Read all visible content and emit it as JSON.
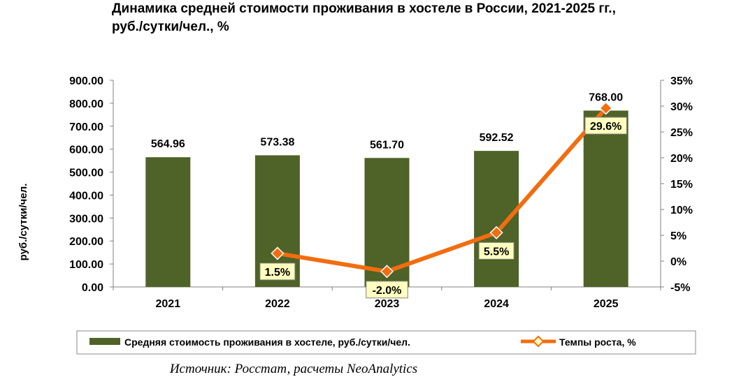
{
  "chart_data": {
    "type": "bar",
    "title": "Динамика средней стоимости проживания в хостеле в России, 2021-2025 гг.,\nруб./сутки/чел., %",
    "categories": [
      "2021",
      "2022",
      "2023",
      "2024",
      "2025"
    ],
    "ylabel": "руб./сутки/чел.",
    "ylim": [
      0,
      900
    ],
    "y_ticks": [
      "0.00",
      "100.00",
      "200.00",
      "300.00",
      "400.00",
      "500.00",
      "600.00",
      "700.00",
      "800.00",
      "900.00"
    ],
    "y2lim": [
      -5,
      35
    ],
    "y2_ticks": [
      "-5%",
      "0%",
      "5%",
      "10%",
      "15%",
      "20%",
      "25%",
      "30%",
      "35%"
    ],
    "grid": false,
    "legend_position": "bottom",
    "series": [
      {
        "name": "Средняя стоимость проживания в хостеле, руб./сутки/чел.",
        "type": "bar",
        "axis": "left",
        "color": "#4f6228",
        "values": [
          564.96,
          573.38,
          561.7,
          592.52,
          768.0
        ],
        "labels": [
          "564.96",
          "573.38",
          "561.70",
          "592.52",
          "768.00"
        ]
      },
      {
        "name": "Темпы роста, %",
        "type": "line",
        "axis": "right",
        "color": "#f26d0f",
        "marker_color": "#f26d0f",
        "label_bg": "#ffffc0",
        "values": [
          null,
          1.5,
          -2.0,
          5.5,
          29.6
        ],
        "labels": [
          "",
          "1.5%",
          "-2.0%",
          "5.5%",
          "29.6%"
        ]
      }
    ]
  },
  "source": "Источник: Росстат, расчеты NeoAnalytics"
}
